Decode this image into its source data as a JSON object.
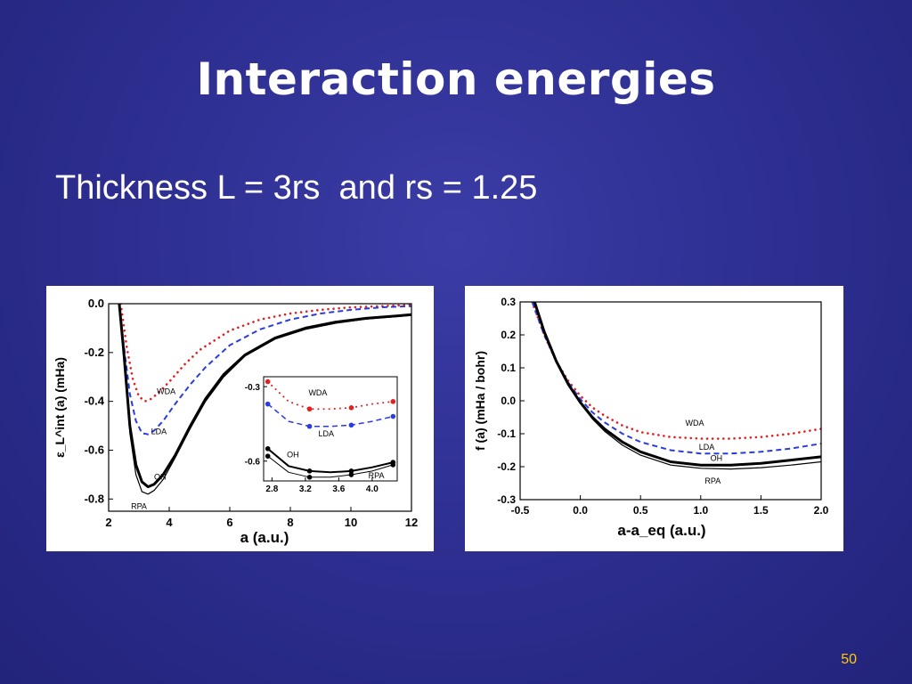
{
  "slide": {
    "title": "Interaction energies",
    "subtitle": "Thickness L = 3rs  and rs = 1.25",
    "page_number": "50"
  },
  "chart_data": [
    {
      "type": "line",
      "xlabel": "a (a.u.)",
      "ylabel": "ε_L^int (a) (mHa)",
      "xlim": [
        2,
        12
      ],
      "ylim": [
        -0.85,
        0.0
      ],
      "xticks": [
        "2",
        "4",
        "6",
        "8",
        "10",
        "12"
      ],
      "yticks": [
        "0.0",
        "-0.2",
        "-0.4",
        "-0.6",
        "-0.8"
      ],
      "series": [
        {
          "name": "WDA",
          "color": "#e02020",
          "style": "dotted",
          "x": [
            2.4,
            2.6,
            2.8,
            3.0,
            3.2,
            3.4,
            3.6,
            4.0,
            4.5,
            5.0,
            6.0,
            7.0,
            8.0,
            9.0,
            10.0,
            11.0,
            12.0
          ],
          "y": [
            0.0,
            -0.18,
            -0.31,
            -0.38,
            -0.4,
            -0.39,
            -0.37,
            -0.32,
            -0.25,
            -0.19,
            -0.11,
            -0.065,
            -0.04,
            -0.025,
            -0.015,
            -0.01,
            -0.005
          ]
        },
        {
          "name": "LDA",
          "color": "#2a3ce0",
          "style": "dashed",
          "x": [
            2.35,
            2.5,
            2.7,
            2.9,
            3.1,
            3.3,
            3.5,
            3.8,
            4.2,
            4.7,
            5.2,
            6.0,
            7.0,
            8.0,
            9.0,
            10.0,
            11.0,
            12.0
          ],
          "y": [
            0.0,
            -0.17,
            -0.37,
            -0.48,
            -0.53,
            -0.535,
            -0.52,
            -0.48,
            -0.41,
            -0.33,
            -0.26,
            -0.17,
            -0.105,
            -0.065,
            -0.04,
            -0.025,
            -0.015,
            -0.01
          ]
        },
        {
          "name": "OH",
          "color": "#000000",
          "style": "solid-thick",
          "x": [
            2.35,
            2.5,
            2.7,
            2.9,
            3.1,
            3.3,
            3.5,
            3.8,
            4.2,
            4.7,
            5.2,
            5.8,
            6.5,
            7.5,
            8.5,
            9.5,
            10.5,
            11.5,
            12.0
          ],
          "y": [
            0.0,
            -0.2,
            -0.5,
            -0.66,
            -0.73,
            -0.75,
            -0.74,
            -0.7,
            -0.62,
            -0.5,
            -0.39,
            -0.29,
            -0.21,
            -0.14,
            -0.1,
            -0.075,
            -0.06,
            -0.05,
            -0.045
          ]
        },
        {
          "name": "RPA",
          "color": "#000000",
          "style": "solid-thin",
          "x": [
            2.35,
            2.5,
            2.7,
            2.9,
            3.1,
            3.3,
            3.5,
            3.8,
            4.2,
            4.7,
            5.2,
            5.8,
            6.5,
            7.5,
            8.5,
            9.5,
            10.5,
            11.5,
            12.0
          ],
          "y": [
            0.0,
            -0.22,
            -0.53,
            -0.7,
            -0.77,
            -0.78,
            -0.765,
            -0.72,
            -0.63,
            -0.51,
            -0.4,
            -0.3,
            -0.215,
            -0.145,
            -0.105,
            -0.08,
            -0.063,
            -0.053,
            -0.048
          ]
        }
      ],
      "inset": {
        "xlim": [
          2.7,
          4.3
        ],
        "ylim": [
          -0.68,
          -0.26
        ],
        "xticks": [
          "2.8",
          "3.2",
          "3.6",
          "4.0"
        ],
        "yticks": [
          "-0.3",
          "-0.6"
        ],
        "series": [
          {
            "name": "WDA",
            "color": "#e02020",
            "style": "dotted",
            "x": [
              2.75,
              3.0,
              3.25,
              3.5,
              3.75,
              4.0,
              4.25
            ],
            "y": [
              -0.28,
              -0.36,
              -0.39,
              -0.39,
              -0.385,
              -0.37,
              -0.36
            ]
          },
          {
            "name": "LDA",
            "color": "#2a3ce0",
            "style": "dashed",
            "x": [
              2.75,
              3.0,
              3.25,
              3.5,
              3.75,
              4.0,
              4.25
            ],
            "y": [
              -0.37,
              -0.44,
              -0.46,
              -0.46,
              -0.455,
              -0.44,
              -0.42
            ]
          },
          {
            "name": "OH",
            "color": "#000000",
            "style": "solid-thick",
            "x": [
              2.75,
              3.0,
              3.25,
              3.5,
              3.75,
              4.0,
              4.25
            ],
            "y": [
              -0.55,
              -0.62,
              -0.64,
              -0.645,
              -0.64,
              -0.625,
              -0.605
            ]
          },
          {
            "name": "RPA",
            "color": "#000000",
            "style": "solid-thin",
            "x": [
              2.75,
              3.0,
              3.25,
              3.5,
              3.75,
              4.0,
              4.25
            ],
            "y": [
              -0.58,
              -0.645,
              -0.665,
              -0.665,
              -0.655,
              -0.64,
              -0.615
            ]
          }
        ]
      }
    },
    {
      "type": "line",
      "xlabel": "a-a_eq (a.u.)",
      "ylabel": "f (a) (mHa / bohr)",
      "xlim": [
        -0.5,
        2.0
      ],
      "ylim": [
        -0.3,
        0.3
      ],
      "xticks": [
        "-0.5",
        "0.0",
        "0.5",
        "1.0",
        "1.5",
        "2.0"
      ],
      "yticks": [
        "0.3",
        "0.2",
        "0.1",
        "0.0",
        "-0.1",
        "-0.2",
        "-0.3"
      ],
      "series": [
        {
          "name": "WDA",
          "color": "#e02020",
          "style": "dotted",
          "x": [
            -0.4,
            -0.3,
            -0.2,
            -0.1,
            0.0,
            0.1,
            0.2,
            0.35,
            0.5,
            0.75,
            1.0,
            1.25,
            1.5,
            1.75,
            2.0
          ],
          "y": [
            0.3,
            0.2,
            0.12,
            0.06,
            0.015,
            -0.02,
            -0.045,
            -0.075,
            -0.095,
            -0.11,
            -0.115,
            -0.115,
            -0.11,
            -0.1,
            -0.085
          ]
        },
        {
          "name": "LDA",
          "color": "#2a3ce0",
          "style": "dashed",
          "x": [
            -0.4,
            -0.3,
            -0.2,
            -0.1,
            0.0,
            0.1,
            0.2,
            0.35,
            0.5,
            0.75,
            1.0,
            1.25,
            1.5,
            1.75,
            2.0
          ],
          "y": [
            0.3,
            0.2,
            0.12,
            0.055,
            0.005,
            -0.035,
            -0.065,
            -0.1,
            -0.125,
            -0.15,
            -0.16,
            -0.16,
            -0.155,
            -0.145,
            -0.13
          ]
        },
        {
          "name": "OH",
          "color": "#000000",
          "style": "solid-thick",
          "x": [
            -0.38,
            -0.3,
            -0.2,
            -0.1,
            0.0,
            0.1,
            0.2,
            0.35,
            0.5,
            0.75,
            1.0,
            1.25,
            1.5,
            1.75,
            2.0
          ],
          "y": [
            0.3,
            0.21,
            0.12,
            0.05,
            -0.005,
            -0.05,
            -0.085,
            -0.125,
            -0.155,
            -0.185,
            -0.195,
            -0.195,
            -0.19,
            -0.18,
            -0.17
          ]
        },
        {
          "name": "RPA",
          "color": "#000000",
          "style": "solid-thin",
          "x": [
            -0.38,
            -0.3,
            -0.2,
            -0.1,
            0.0,
            0.1,
            0.2,
            0.35,
            0.5,
            0.75,
            1.0,
            1.25,
            1.5,
            1.75,
            2.0
          ],
          "y": [
            0.3,
            0.21,
            0.12,
            0.05,
            -0.008,
            -0.055,
            -0.092,
            -0.135,
            -0.165,
            -0.195,
            -0.205,
            -0.207,
            -0.203,
            -0.195,
            -0.185
          ]
        }
      ]
    }
  ]
}
